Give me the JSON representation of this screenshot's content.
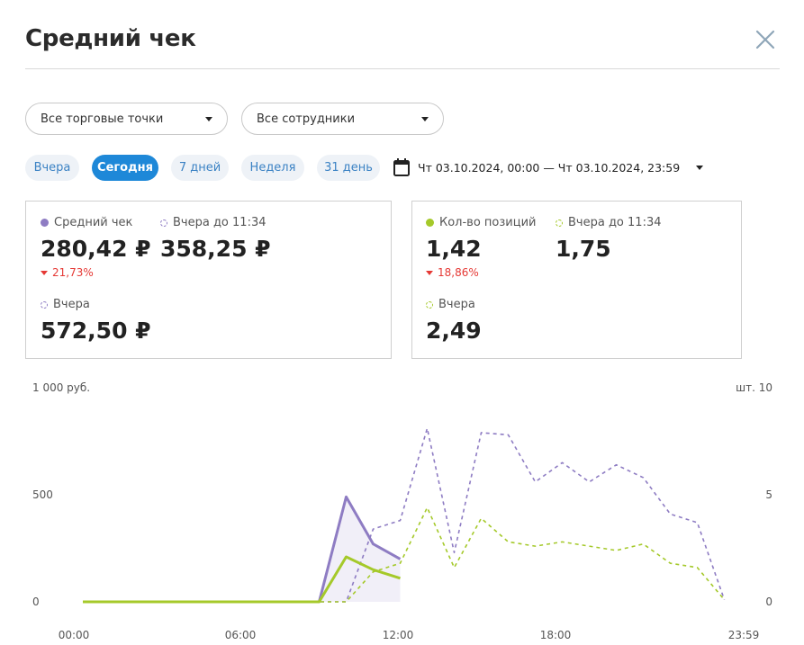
{
  "dialog": {
    "title": "Средний чек"
  },
  "filters": {
    "outlets": "Все торговые точки",
    "employees": "Все сотрудники"
  },
  "periods": [
    {
      "label": "Вчера",
      "active": false
    },
    {
      "label": "Сегодня",
      "active": true
    },
    {
      "label": "7 дней",
      "active": false
    },
    {
      "label": "Неделя",
      "active": false
    },
    {
      "label": "31 день",
      "active": false
    }
  ],
  "date_range": "Чт 03.10.2024, 00:00 — Чт 03.10.2024, 23:59",
  "card_check": {
    "main_label": "Средний чек",
    "main_value": "280,42 ₽",
    "main_delta": "21,73%",
    "cmp_label": "Вчера до 11:34",
    "cmp_value": "358,25 ₽",
    "yesterday_label": "Вчера",
    "yesterday_value": "572,50 ₽"
  },
  "card_items": {
    "main_label": "Кол-во позиций",
    "main_value": "1,42",
    "main_delta": "18,86%",
    "cmp_label": "Вчера до 11:34",
    "cmp_value": "1,75",
    "yesterday_label": "Вчера",
    "yesterday_value": "2,49"
  },
  "colors": {
    "purple": "#8e7cc3",
    "green": "#a5c92a",
    "accent": "#1e88d8",
    "negative": "#e53935"
  },
  "chart_data": {
    "type": "line",
    "left_axis": {
      "unit": "руб.",
      "ticks": [
        "0",
        "500",
        "1 000"
      ],
      "ylim": [
        0,
        1000
      ]
    },
    "right_axis": {
      "unit": "шт.",
      "ticks": [
        "0",
        "5",
        "10"
      ],
      "ylim": [
        0,
        10
      ]
    },
    "x_ticks": [
      "00:00",
      "06:00",
      "12:00",
      "18:00",
      "23:59"
    ],
    "series": [
      {
        "name": "Средний чек",
        "axis": "left",
        "style": "solid",
        "color": "#8e7cc3",
        "fill": true,
        "x": [
          0,
          8.75,
          9.75,
          10.75,
          11.75
        ],
        "y": [
          0,
          0,
          490,
          270,
          200
        ]
      },
      {
        "name": "Кол-во позиций",
        "axis": "right",
        "style": "solid",
        "color": "#a5c92a",
        "x": [
          0,
          8.75,
          9.75,
          10.75,
          11.75
        ],
        "y": [
          0,
          0,
          2.1,
          1.5,
          1.1
        ]
      },
      {
        "name": "Вчера",
        "axis": "left",
        "style": "dashed",
        "color": "#8e7cc3",
        "x": [
          0,
          9.75,
          10.75,
          11.75,
          12.75,
          13.75,
          14.75,
          15.75,
          16.75,
          17.75,
          18.75,
          19.75,
          20.75,
          21.75,
          22.75,
          23.75
        ],
        "y": [
          0,
          0,
          340,
          380,
          810,
          230,
          790,
          780,
          560,
          650,
          560,
          640,
          580,
          410,
          370,
          10
        ]
      },
      {
        "name": "Вчера",
        "axis": "right",
        "style": "dashed",
        "color": "#a5c92a",
        "x": [
          0,
          9.75,
          10.75,
          11.75,
          12.75,
          13.75,
          14.75,
          15.75,
          16.75,
          17.75,
          18.75,
          19.75,
          20.75,
          21.75,
          22.75,
          23.75
        ],
        "y": [
          0,
          0,
          1.4,
          1.8,
          4.4,
          1.6,
          3.9,
          2.8,
          2.6,
          2.8,
          2.6,
          2.4,
          2.7,
          1.8,
          1.6,
          0.1
        ]
      }
    ]
  }
}
